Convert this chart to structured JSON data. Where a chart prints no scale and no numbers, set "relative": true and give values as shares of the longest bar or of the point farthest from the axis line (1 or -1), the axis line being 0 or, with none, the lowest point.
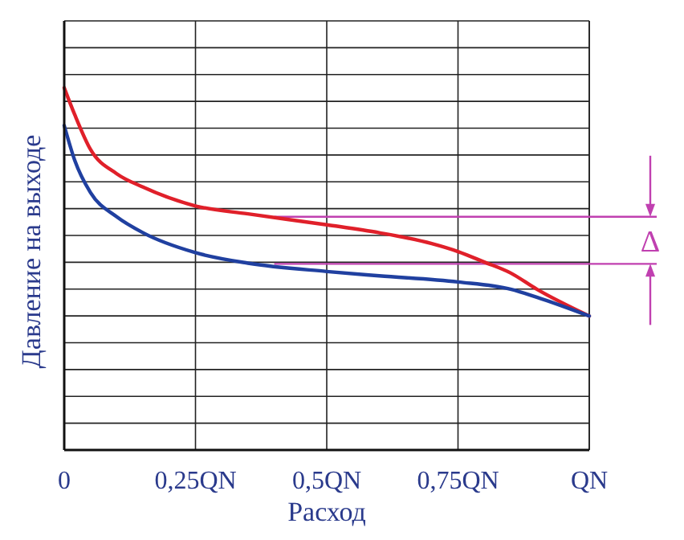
{
  "chart_data": {
    "type": "line",
    "relative": true,
    "xlabel": "Расход",
    "ylabel": "Давление на выходе",
    "xlim": [
      0,
      1
    ],
    "xticks": [
      0,
      {
        "value": 0.25,
        "label": "0,25QN"
      },
      {
        "value": 0.5,
        "label": "0,5QN"
      },
      {
        "value": 0.75,
        "label": "0,75QN"
      },
      {
        "value": 1,
        "label": "QN"
      }
    ],
    "grid": true,
    "line_style": "solid",
    "series": [
      {
        "color": "#e0202a",
        "x": [
          0,
          0.02,
          0.05,
          0.1,
          0.15,
          0.25,
          0.35,
          0.5,
          0.6,
          0.7,
          0.75,
          0.8,
          0.85,
          0.9,
          1
        ],
        "values": [
          1,
          0.926,
          0.83,
          0.763,
          0.726,
          0.674,
          0.652,
          0.622,
          0.6,
          0.57,
          0.548,
          0.519,
          0.489,
          0.444,
          0.37
        ]
      },
      {
        "color": "#2040a0",
        "x": [
          0,
          0.02,
          0.05,
          0.1,
          0.15,
          0.25,
          0.35,
          0.5,
          0.6,
          0.75,
          0.85,
          0.9,
          1
        ],
        "values": [
          0.896,
          0.8,
          0.711,
          0.644,
          0.6,
          0.545,
          0.516,
          0.493,
          0.481,
          0.464,
          0.444,
          0.422,
          0.37
        ]
      }
    ],
    "ref_lines": [
      {
        "axis": "y",
        "value": 0.644,
        "color": "#c040b0"
      },
      {
        "axis": "y",
        "value": 0.514,
        "color": "#c040b0"
      }
    ],
    "annotations": [
      "Δ"
    ]
  }
}
